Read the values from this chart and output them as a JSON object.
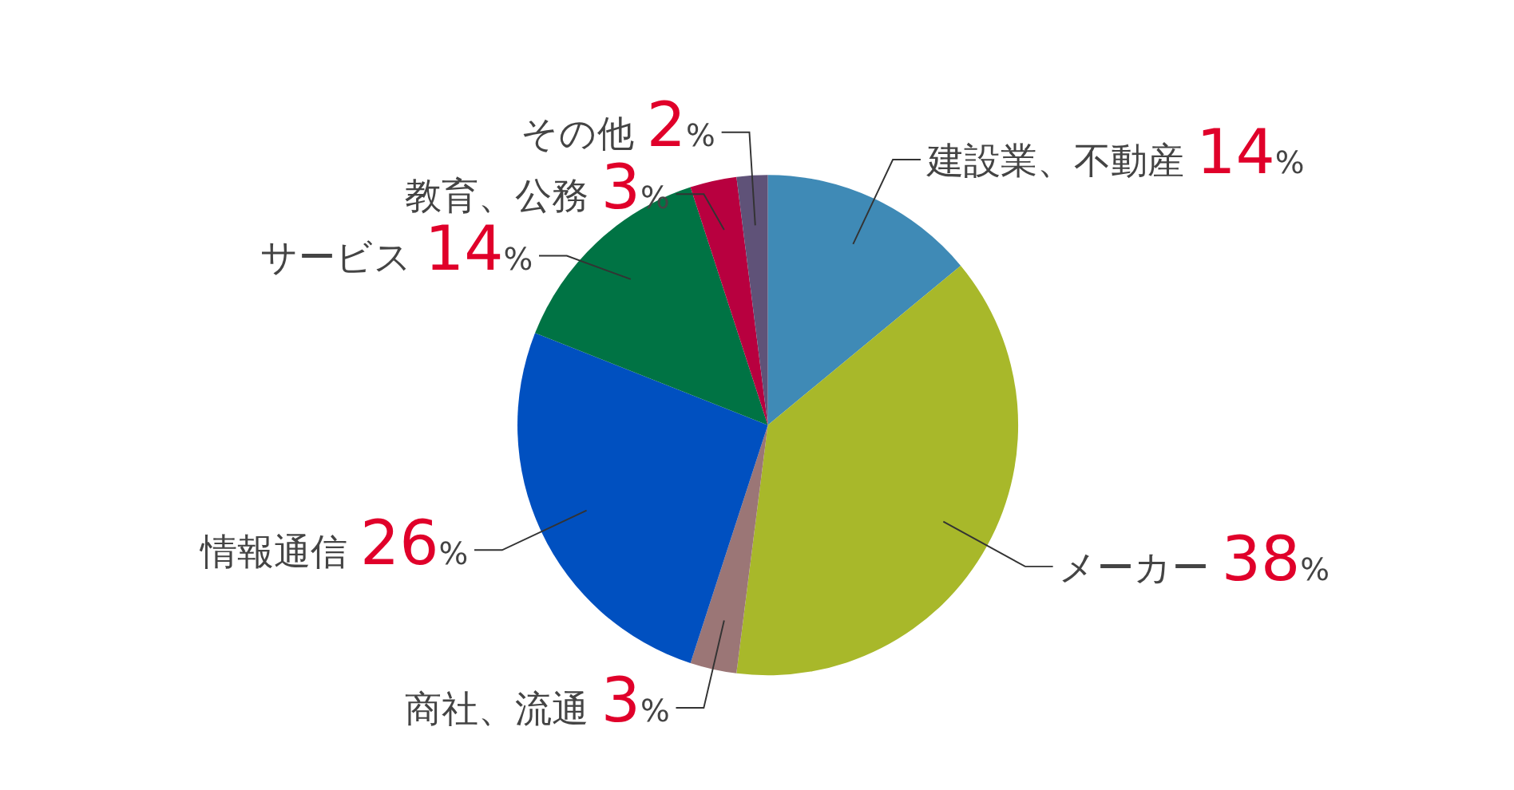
{
  "chart_data": {
    "type": "pie",
    "categories": [
      "建設業、不動産",
      "メーカー",
      "商社、流通",
      "情報通信",
      "サービス",
      "教育、公務",
      "その他"
    ],
    "values": [
      14,
      38,
      3,
      26,
      14,
      3,
      2
    ],
    "colors": [
      "#3f8ab6",
      "#a8b82a",
      "#9b7676",
      "#0050c0",
      "#007344",
      "#b8003f",
      "#5f5278"
    ],
    "value_labels": [
      "14%",
      "38%",
      "3%",
      "26%",
      "14%",
      "3%",
      "2%"
    ]
  }
}
